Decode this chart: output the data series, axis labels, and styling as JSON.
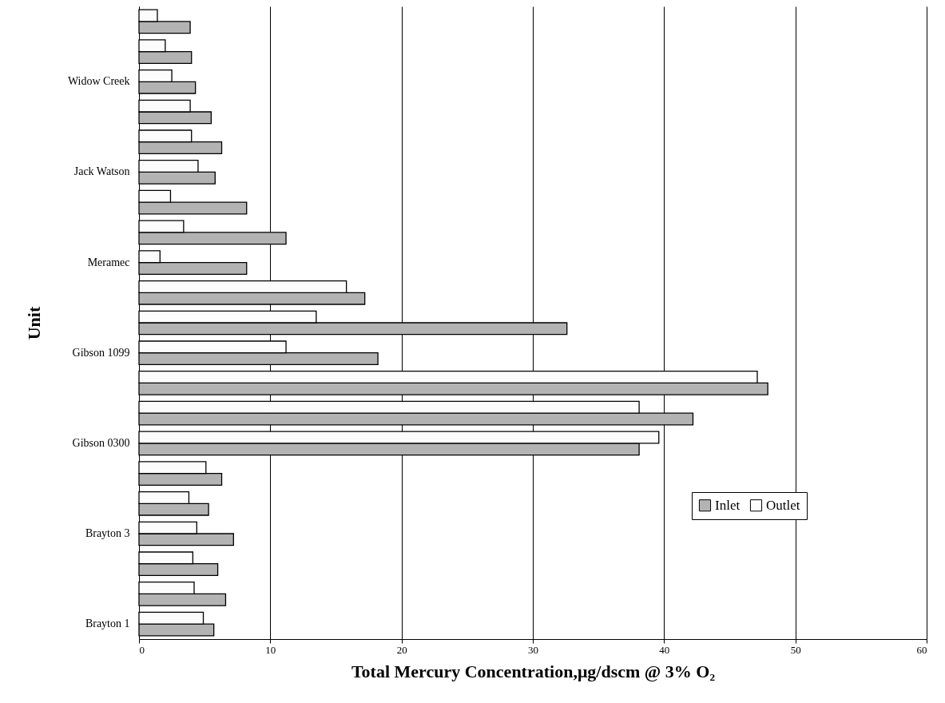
{
  "chart_data": {
    "type": "bar",
    "orientation": "horizontal",
    "xlabel": "Total Mercury Concentration,μg/dscm @ 3% O₂",
    "ylabel": "Unit",
    "categories": [
      null,
      null,
      "Widow Creek",
      null,
      null,
      "Jack Watson",
      null,
      null,
      "Meramec",
      null,
      null,
      "Gibson 1099",
      null,
      null,
      "Gibson 0300",
      null,
      null,
      "Brayton 3",
      null,
      null,
      "Brayton 1"
    ],
    "series": [
      {
        "name": "Inlet",
        "color": "#b3b3b3",
        "values": [
          3.9,
          4.0,
          4.3,
          5.5,
          6.3,
          5.8,
          8.2,
          11.2,
          8.2,
          17.2,
          32.6,
          18.2,
          47.9,
          42.2,
          38.1,
          6.3,
          5.3,
          7.2,
          6.0,
          6.6,
          5.7
        ]
      },
      {
        "name": "Outlet",
        "color": "#fcfcfc",
        "values": [
          1.4,
          2.0,
          2.5,
          3.9,
          4.0,
          4.5,
          2.4,
          3.4,
          1.6,
          15.8,
          13.5,
          11.2,
          47.1,
          38.1,
          39.6,
          5.1,
          3.8,
          4.4,
          4.1,
          4.2,
          4.9
        ]
      }
    ],
    "xlim": [
      0,
      60
    ],
    "xticks": [
      0,
      10,
      20,
      30,
      40,
      50,
      60
    ],
    "grid": "x",
    "legend": "bottom right"
  }
}
